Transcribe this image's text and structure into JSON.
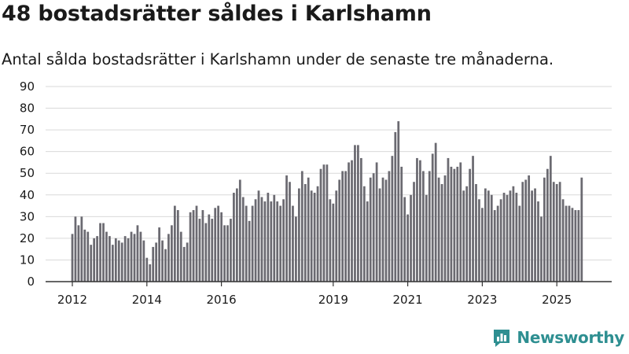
{
  "title": "48 bostadsrätter såldes i Karlshamn",
  "subtitle": "Antal sålda bostadsrätter i Karlshamn under de senaste tre månaderna.",
  "brand": "Newsworthy",
  "colors": {
    "bar": "#6b6a71",
    "highlight": "#1aa39a",
    "grid": "#d9d9d9",
    "axis": "#333333",
    "text": "#1a1a1a",
    "brand": "#2e8f91"
  },
  "chart_data": {
    "type": "bar",
    "title": "48 bostadsrätter såldes i Karlshamn",
    "xlabel": "",
    "ylabel": "",
    "ylim": [
      0,
      90
    ],
    "yticks": [
      0,
      10,
      20,
      30,
      40,
      50,
      60,
      70,
      80,
      90
    ],
    "xticks": [
      {
        "label": "2012",
        "index": 0
      },
      {
        "label": "2014",
        "index": 24
      },
      {
        "label": "2016",
        "index": 48
      },
      {
        "label": "2019",
        "index": 84
      },
      {
        "label": "2021",
        "index": 108
      },
      {
        "label": "2023",
        "index": 132
      },
      {
        "label": "2025",
        "index": 156
      }
    ],
    "highlight_index": 165,
    "highlight_label": "48",
    "values": [
      22,
      30,
      26,
      30,
      24,
      23,
      17,
      20,
      21,
      27,
      27,
      23,
      21,
      17,
      20,
      19,
      18,
      21,
      20,
      23,
      22,
      26,
      23,
      19,
      11,
      8,
      16,
      18,
      25,
      19,
      15,
      22,
      26,
      35,
      33,
      23,
      16,
      18,
      32,
      33,
      35,
      29,
      33,
      27,
      31,
      29,
      34,
      35,
      32,
      26,
      26,
      29,
      41,
      43,
      47,
      39,
      35,
      28,
      35,
      38,
      42,
      39,
      37,
      41,
      37,
      40,
      37,
      35,
      38,
      49,
      46,
      35,
      30,
      43,
      51,
      45,
      48,
      42,
      41,
      44,
      52,
      54,
      54,
      38,
      36,
      42,
      47,
      51,
      51,
      55,
      56,
      63,
      63,
      57,
      44,
      37,
      48,
      50,
      55,
      43,
      48,
      47,
      51,
      58,
      69,
      74,
      53,
      39,
      31,
      40,
      46,
      57,
      56,
      51,
      40,
      51,
      59,
      64,
      48,
      45,
      49,
      57,
      53,
      52,
      53,
      55,
      42,
      44,
      52,
      58,
      45,
      38,
      34,
      43,
      42,
      40,
      33,
      35,
      38,
      41,
      40,
      42,
      44,
      41,
      35,
      46,
      47,
      49,
      42,
      43,
      37,
      30,
      48,
      52,
      58,
      46,
      45,
      46,
      38,
      35,
      35,
      34,
      33,
      33,
      48
    ]
  }
}
